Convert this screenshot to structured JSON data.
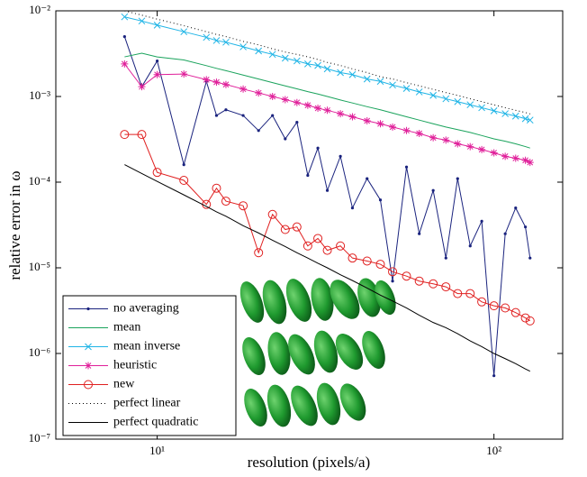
{
  "chart_data": {
    "type": "line",
    "xlabel": "resolution (pixels/a)",
    "ylabel": "relative error in ω",
    "xscale": "log",
    "yscale": "log",
    "xlim": [
      5,
      160
    ],
    "ylim": [
      1e-07,
      0.01
    ],
    "xticks": [
      {
        "value": 10,
        "label": "10¹"
      },
      {
        "value": 100,
        "label": "10²"
      }
    ],
    "yticks": [
      {
        "value": 1e-07,
        "label": "10⁻⁷"
      },
      {
        "value": 1e-06,
        "label": "10⁻⁶"
      },
      {
        "value": 1e-05,
        "label": "10⁻⁵"
      },
      {
        "value": 0.0001,
        "label": "10⁻⁴"
      },
      {
        "value": 0.001,
        "label": "10⁻³"
      },
      {
        "value": 0.01,
        "label": "10⁻²"
      }
    ],
    "grid": false,
    "legend": "lower left",
    "x": [
      8,
      9,
      10,
      12,
      14,
      15,
      16,
      18,
      20,
      22,
      24,
      26,
      28,
      30,
      32,
      35,
      38,
      42,
      46,
      50,
      55,
      60,
      66,
      72,
      78,
      85,
      92,
      100,
      108,
      116,
      124,
      128
    ],
    "series": [
      {
        "name": "no averaging",
        "color": "#1a237e",
        "marker": ".",
        "linestyle": "solid",
        "values": [
          0.005,
          0.0013,
          0.0026,
          0.00016,
          0.0015,
          0.0006,
          0.0007,
          0.0006,
          0.0004,
          0.0006,
          0.00032,
          0.0005,
          0.00012,
          0.00025,
          8e-05,
          0.0002,
          5e-05,
          0.00011,
          6.2e-05,
          7e-06,
          0.00015,
          2.5e-05,
          8e-05,
          1.3e-05,
          0.00011,
          1.8e-05,
          3.5e-05,
          5.5e-07,
          2.5e-05,
          5e-05,
          3e-05,
          1.3e-05
        ]
      },
      {
        "name": "mean",
        "color": "#1aa35c",
        "marker": "none",
        "linestyle": "solid",
        "values": [
          0.0029,
          0.0032,
          0.0029,
          0.00267,
          0.00229,
          0.00213,
          0.002,
          0.00178,
          0.0016,
          0.00145,
          0.00133,
          0.00123,
          0.00114,
          0.00107,
          0.001,
          0.00091,
          0.00084,
          0.00076,
          0.0007,
          0.00064,
          0.00058,
          0.00053,
          0.00048,
          0.00044,
          0.00041,
          0.00038,
          0.00035,
          0.00032,
          0.0003,
          0.00028,
          0.00026,
          0.00025
        ]
      },
      {
        "name": "mean inverse",
        "color": "#1fb4e6",
        "marker": "x",
        "linestyle": "solid",
        "values": [
          0.0085,
          0.0076,
          0.0068,
          0.0057,
          0.0049,
          0.0045,
          0.0043,
          0.0038,
          0.0034,
          0.0031,
          0.0028,
          0.0026,
          0.0024,
          0.0023,
          0.0021,
          0.0019,
          0.0018,
          0.0016,
          0.0015,
          0.00136,
          0.00124,
          0.00113,
          0.00103,
          0.00094,
          0.00087,
          0.0008,
          0.00074,
          0.00068,
          0.00063,
          0.00059,
          0.00055,
          0.00053
        ]
      },
      {
        "name": "heuristic",
        "color": "#e0209a",
        "marker": "*",
        "linestyle": "solid",
        "values": [
          0.0024,
          0.0013,
          0.0018,
          0.00183,
          0.00157,
          0.00147,
          0.00138,
          0.00122,
          0.0011,
          0.001,
          0.00092,
          0.00085,
          0.00079,
          0.00073,
          0.00069,
          0.00063,
          0.00058,
          0.00052,
          0.00048,
          0.00044,
          0.0004,
          0.00037,
          0.00033,
          0.00031,
          0.00028,
          0.00026,
          0.00024,
          0.00022,
          0.0002,
          0.00019,
          0.00018,
          0.00017
        ]
      },
      {
        "name": "new",
        "color": "#e02020",
        "marker": "o",
        "linestyle": "solid",
        "values": [
          0.00036,
          0.00036,
          0.00013,
          0.000105,
          5.5e-05,
          8.5e-05,
          6e-05,
          5.3e-05,
          1.5e-05,
          4.2e-05,
          2.8e-05,
          3e-05,
          1.8e-05,
          2.2e-05,
          1.6e-05,
          1.8e-05,
          1.3e-05,
          1.2e-05,
          1.1e-05,
          9e-06,
          8e-06,
          7e-06,
          6.5e-06,
          6e-06,
          5e-06,
          5e-06,
          4e-06,
          3.6e-06,
          3.4e-06,
          3e-06,
          2.6e-06,
          2.4e-06
        ]
      },
      {
        "name": "perfect linear",
        "color": "#000000",
        "marker": "none",
        "linestyle": "dotted",
        "values": [
          0.01,
          0.0089,
          0.008,
          0.0067,
          0.0057,
          0.0053,
          0.005,
          0.0044,
          0.004,
          0.0036,
          0.0033,
          0.0031,
          0.0029,
          0.0027,
          0.0025,
          0.0023,
          0.0021,
          0.0019,
          0.0017,
          0.0016,
          0.00145,
          0.00133,
          0.00121,
          0.00111,
          0.00103,
          0.00094,
          0.00087,
          0.0008,
          0.00074,
          0.00069,
          0.00065,
          0.000625
        ]
      },
      {
        "name": "perfect quadratic",
        "color": "#000000",
        "marker": "none",
        "linestyle": "solid",
        "values": [
          0.00016,
          0.000126,
          0.000102,
          7.1e-05,
          5.2e-05,
          4.5e-05,
          4e-05,
          3.1e-05,
          2.55e-05,
          2.1e-05,
          1.77e-05,
          1.5e-05,
          1.3e-05,
          1.13e-05,
          1e-05,
          8.3e-06,
          7.1e-06,
          5.8e-06,
          4.8e-06,
          4.1e-06,
          3.4e-06,
          2.8e-06,
          2.3e-06,
          2e-06,
          1.7e-06,
          1.4e-06,
          1.2e-06,
          1e-06,
          8.7e-07,
          7.6e-07,
          6.6e-07,
          6.2e-07
        ]
      }
    ]
  }
}
